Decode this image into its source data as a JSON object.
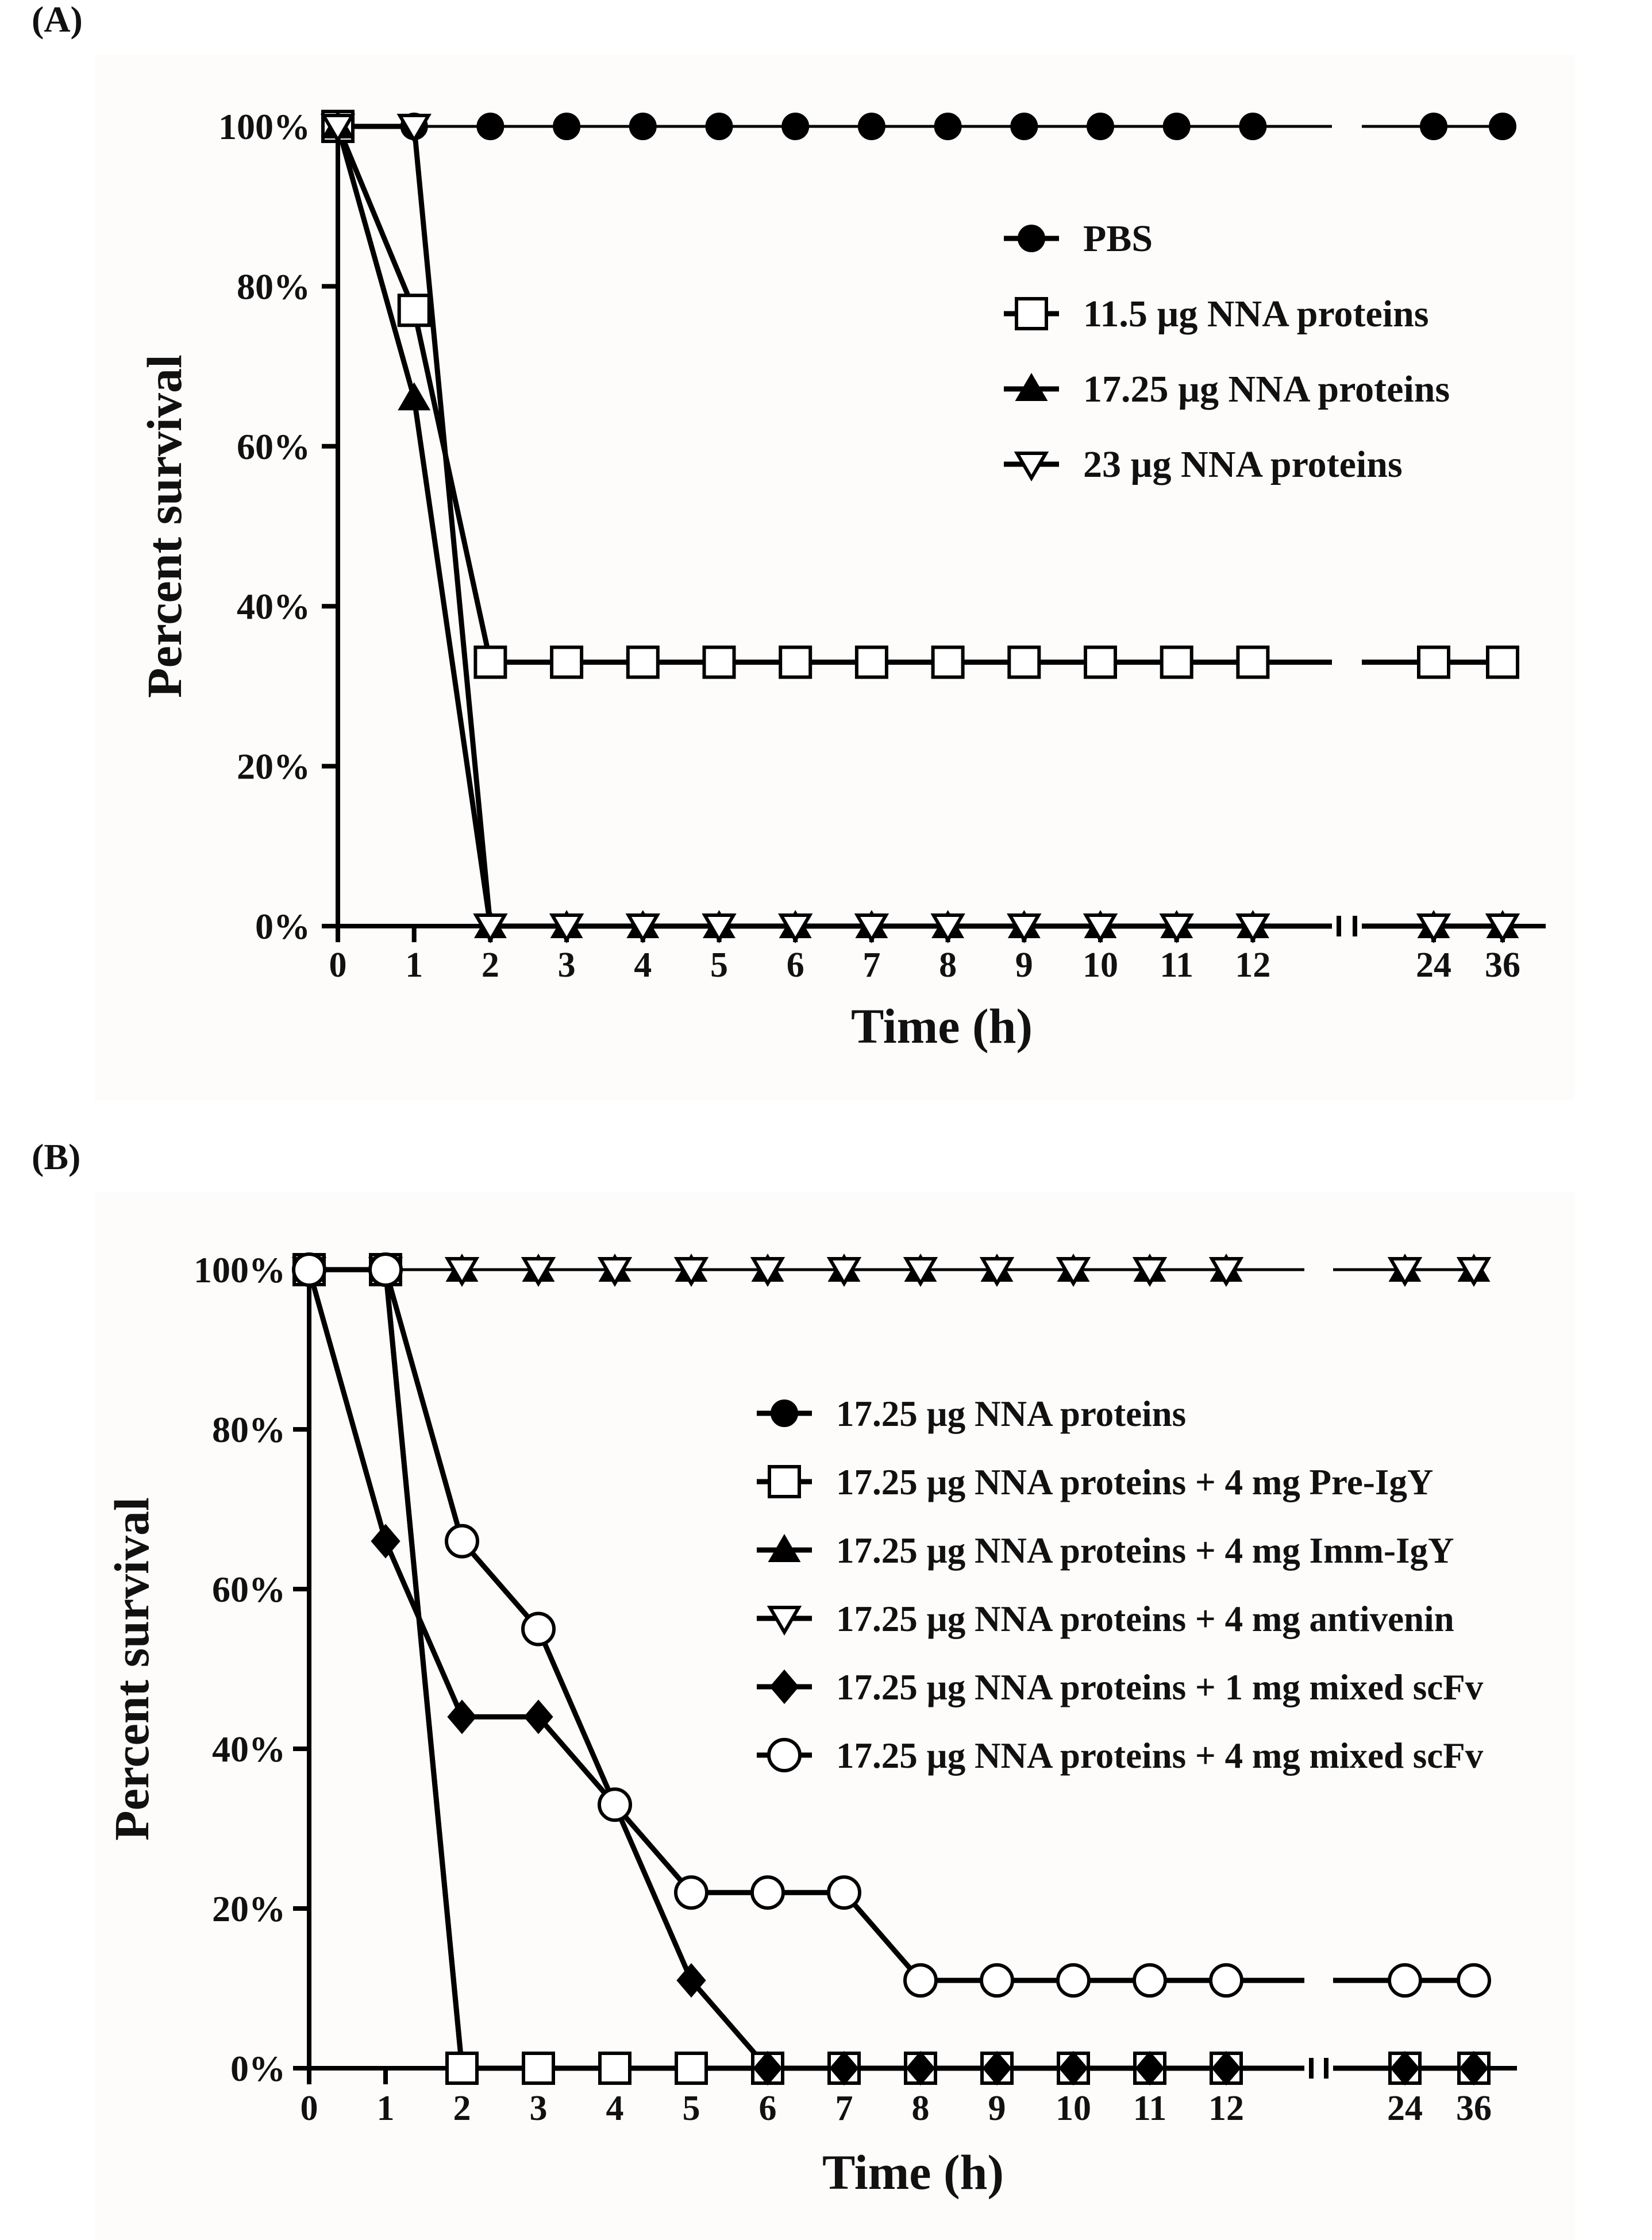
{
  "chart_data": [
    {
      "panel_label": "(A)",
      "type": "line",
      "ylabel": "Percent survival",
      "xlabel": "Time (h)",
      "ylim": [
        0,
        100
      ],
      "y_ticks": [
        "0%",
        "20%",
        "40%",
        "60%",
        "80%",
        "100%"
      ],
      "x_ticks": [
        "0",
        "1",
        "2",
        "3",
        "4",
        "5",
        "6",
        "7",
        "8",
        "9",
        "10",
        "11",
        "12",
        "24",
        "36"
      ],
      "axis_break": "between 12 and 24",
      "legend_position": "top-right",
      "series": [
        {
          "name": "PBS",
          "marker": "filled-circle",
          "x": [
            "0",
            "1",
            "2",
            "3",
            "4",
            "5",
            "6",
            "7",
            "8",
            "9",
            "10",
            "11",
            "12",
            "24",
            "36"
          ],
          "values": [
            100,
            100,
            100,
            100,
            100,
            100,
            100,
            100,
            100,
            100,
            100,
            100,
            100,
            100,
            100
          ]
        },
        {
          "name": "11.5 µg NNA proteins",
          "marker": "open-square",
          "x": [
            "0",
            "1",
            "2",
            "3",
            "4",
            "5",
            "6",
            "7",
            "8",
            "9",
            "10",
            "11",
            "12",
            "24",
            "36"
          ],
          "values": [
            100,
            77,
            33,
            33,
            33,
            33,
            33,
            33,
            33,
            33,
            33,
            33,
            33,
            33,
            33
          ]
        },
        {
          "name": "17.25 µg NNA proteins",
          "marker": "filled-triangle-up",
          "x": [
            "0",
            "1",
            "2",
            "3",
            "4",
            "5",
            "6",
            "7",
            "8",
            "9",
            "10",
            "11",
            "12",
            "24",
            "36"
          ],
          "values": [
            100,
            66,
            0,
            0,
            0,
            0,
            0,
            0,
            0,
            0,
            0,
            0,
            0,
            0,
            0
          ]
        },
        {
          "name": "23 µg NNA proteins",
          "marker": "open-triangle-down",
          "x": [
            "0",
            "1",
            "2",
            "3",
            "4",
            "5",
            "6",
            "7",
            "8",
            "9",
            "10",
            "11",
            "12",
            "24",
            "36"
          ],
          "values": [
            100,
            100,
            0,
            0,
            0,
            0,
            0,
            0,
            0,
            0,
            0,
            0,
            0,
            0,
            0
          ]
        }
      ]
    },
    {
      "panel_label": "(B)",
      "type": "line",
      "ylabel": "Percent survival",
      "xlabel": "Time (h)",
      "ylim": [
        0,
        100
      ],
      "y_ticks": [
        "0%",
        "20%",
        "40%",
        "60%",
        "80%",
        "100%"
      ],
      "x_ticks": [
        "0",
        "1",
        "2",
        "3",
        "4",
        "5",
        "6",
        "7",
        "8",
        "9",
        "10",
        "11",
        "12",
        "24",
        "36"
      ],
      "axis_break": "between 12 and 24",
      "legend_position": "right",
      "series": [
        {
          "name": "17.25 µg NNA proteins",
          "marker": "filled-circle",
          "x": [
            "0",
            "1",
            "2",
            "3",
            "4",
            "5",
            "6",
            "7",
            "8",
            "9",
            "10",
            "11",
            "12",
            "24",
            "36"
          ],
          "values": [
            100,
            100,
            0,
            0,
            0,
            0,
            0,
            0,
            0,
            0,
            0,
            0,
            0,
            0,
            0
          ]
        },
        {
          "name": "17.25 µg NNA proteins + 4 mg Pre-IgY",
          "marker": "open-square",
          "x": [
            "0",
            "1",
            "2",
            "3",
            "4",
            "5",
            "6",
            "7",
            "8",
            "9",
            "10",
            "11",
            "12",
            "24",
            "36"
          ],
          "values": [
            100,
            100,
            0,
            0,
            0,
            0,
            0,
            0,
            0,
            0,
            0,
            0,
            0,
            0,
            0
          ]
        },
        {
          "name": "17.25 µg NNA proteins + 4 mg Imm-IgY",
          "marker": "filled-triangle-up",
          "x": [
            "0",
            "1",
            "2",
            "3",
            "4",
            "5",
            "6",
            "7",
            "8",
            "9",
            "10",
            "11",
            "12",
            "24",
            "36"
          ],
          "values": [
            100,
            100,
            100,
            100,
            100,
            100,
            100,
            100,
            100,
            100,
            100,
            100,
            100,
            100,
            100
          ]
        },
        {
          "name": "17.25 µg NNA proteins + 4 mg antivenin",
          "marker": "open-triangle-down",
          "x": [
            "0",
            "1",
            "2",
            "3",
            "4",
            "5",
            "6",
            "7",
            "8",
            "9",
            "10",
            "11",
            "12",
            "24",
            "36"
          ],
          "values": [
            100,
            100,
            100,
            100,
            100,
            100,
            100,
            100,
            100,
            100,
            100,
            100,
            100,
            100,
            100
          ]
        },
        {
          "name": "17.25 µg NNA proteins + 1 mg mixed scFv",
          "marker": "filled-diamond",
          "x": [
            "0",
            "1",
            "2",
            "3",
            "4",
            "5",
            "6",
            "7",
            "8",
            "9",
            "10",
            "11",
            "12",
            "24",
            "36"
          ],
          "values": [
            100,
            66,
            44,
            44,
            33,
            11,
            0,
            0,
            0,
            0,
            0,
            0,
            0,
            0,
            0
          ]
        },
        {
          "name": "17.25 µg NNA proteins + 4 mg mixed scFv",
          "marker": "open-circle",
          "x": [
            "0",
            "1",
            "2",
            "3",
            "4",
            "5",
            "6",
            "7",
            "8",
            "9",
            "10",
            "11",
            "12",
            "24",
            "36"
          ],
          "values": [
            100,
            100,
            66,
            55,
            33,
            22,
            22,
            22,
            11,
            11,
            11,
            11,
            11,
            11,
            11
          ]
        }
      ]
    }
  ]
}
